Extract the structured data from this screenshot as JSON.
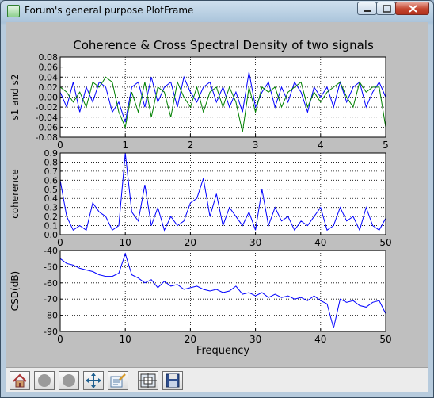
{
  "window": {
    "title": "Forum's general purpose PlotFrame"
  },
  "figure": {
    "title": "Coherence & Cross Spectral Density of two signals"
  },
  "colors": {
    "series1": "#0000ff",
    "series2": "#008000",
    "plot_bg": "#ffffff",
    "figure_bg": "#bfbfbf"
  },
  "toolbar": {
    "buttons": [
      {
        "name": "home",
        "icon": "home-icon"
      },
      {
        "name": "back",
        "icon": "back-icon"
      },
      {
        "name": "forward",
        "icon": "forward-icon"
      },
      {
        "name": "pan",
        "icon": "pan-icon"
      },
      {
        "name": "zoom",
        "icon": "zoom-icon"
      },
      {
        "name": "subplots",
        "icon": "subplots-icon"
      },
      {
        "name": "save",
        "icon": "save-icon"
      }
    ]
  },
  "chart_data": [
    {
      "type": "line",
      "title": "Coherence & Cross Spectral Density of two signals",
      "xlabel": "",
      "ylabel": "s1 and s2",
      "xlim": [
        0,
        5
      ],
      "ylim": [
        -0.08,
        0.08
      ],
      "xticks": [
        "0",
        "1",
        "2",
        "3",
        "4",
        "5"
      ],
      "yticks": [
        "0.08",
        "0.06",
        "0.04",
        "0.02",
        "0.00",
        "-0.02",
        "-0.04",
        "-0.06",
        "-0.08"
      ],
      "grid": true,
      "series": [
        {
          "color": "#0000ff",
          "x": [
            0,
            0.1,
            0.2,
            0.3,
            0.4,
            0.5,
            0.6,
            0.7,
            0.8,
            0.9,
            1.0,
            1.1,
            1.2,
            1.3,
            1.4,
            1.5,
            1.6,
            1.7,
            1.8,
            1.9,
            2.0,
            2.1,
            2.2,
            2.3,
            2.4,
            2.5,
            2.6,
            2.7,
            2.8,
            2.9,
            3.0,
            3.1,
            3.2,
            3.3,
            3.4,
            3.5,
            3.6,
            3.7,
            3.8,
            3.9,
            4.0,
            4.1,
            4.2,
            4.3,
            4.4,
            4.5,
            4.6,
            4.7,
            4.8,
            4.9,
            5.0
          ],
          "y": [
            0.01,
            -0.02,
            0.03,
            -0.03,
            0.02,
            -0.01,
            0.03,
            0.02,
            -0.03,
            -0.01,
            -0.05,
            0.02,
            0.03,
            -0.02,
            0.04,
            -0.01,
            0.02,
            0.03,
            -0.02,
            0.04,
            0.01,
            -0.01,
            0.02,
            0.03,
            -0.01,
            0.02,
            -0.02,
            0.01,
            -0.03,
            0.05,
            -0.02,
            0.01,
            0.03,
            -0.02,
            0.02,
            -0.01,
            0.03,
            0.01,
            -0.03,
            0.02,
            0.0,
            0.02,
            -0.02,
            0.03,
            -0.01,
            0.02,
            0.03,
            -0.02,
            0.01,
            0.03,
            0.0
          ]
        },
        {
          "color": "#008000",
          "x": [
            0,
            0.1,
            0.2,
            0.3,
            0.4,
            0.5,
            0.6,
            0.7,
            0.8,
            0.9,
            1.0,
            1.1,
            1.2,
            1.3,
            1.4,
            1.5,
            1.6,
            1.7,
            1.8,
            1.9,
            2.0,
            2.1,
            2.2,
            2.3,
            2.4,
            2.5,
            2.6,
            2.7,
            2.8,
            2.9,
            3.0,
            3.1,
            3.2,
            3.3,
            3.4,
            3.5,
            3.6,
            3.7,
            3.8,
            3.9,
            4.0,
            4.1,
            4.2,
            4.3,
            4.4,
            4.5,
            4.6,
            4.7,
            4.8,
            4.9,
            5.0
          ],
          "y": [
            0.02,
            0.01,
            -0.01,
            0.01,
            -0.02,
            0.03,
            0.02,
            0.04,
            0.03,
            -0.03,
            -0.06,
            0.01,
            -0.03,
            0.03,
            -0.04,
            0.02,
            0.01,
            -0.04,
            0.03,
            0.0,
            -0.02,
            0.02,
            -0.03,
            0.01,
            0.02,
            -0.02,
            0.02,
            -0.01,
            -0.07,
            0.02,
            -0.03,
            0.02,
            0.01,
            0.02,
            -0.02,
            0.01,
            0.02,
            0.03,
            -0.02,
            0.01,
            -0.01,
            0.01,
            0.02,
            0.03,
            0.0,
            -0.02,
            0.03,
            0.01,
            0.02,
            0.02,
            -0.06
          ]
        }
      ]
    },
    {
      "type": "line",
      "title": "",
      "xlabel": "",
      "ylabel": "coherence",
      "xlim": [
        0,
        50
      ],
      "ylim": [
        0,
        0.9
      ],
      "xticks": [
        "0",
        "10",
        "20",
        "30",
        "40",
        "50"
      ],
      "yticks": [
        "0.9",
        "0.8",
        "0.7",
        "0.6",
        "0.5",
        "0.4",
        "0.3",
        "0.2",
        "0.1",
        "0.0"
      ],
      "grid": true,
      "series": [
        {
          "color": "#0000ff",
          "x": [
            0,
            1,
            2,
            3,
            4,
            5,
            6,
            7,
            8,
            9,
            10,
            11,
            12,
            13,
            14,
            15,
            16,
            17,
            18,
            19,
            20,
            21,
            22,
            23,
            24,
            25,
            26,
            27,
            28,
            29,
            30,
            31,
            32,
            33,
            34,
            35,
            36,
            37,
            38,
            39,
            40,
            41,
            42,
            43,
            44,
            45,
            46,
            47,
            48,
            49,
            50
          ],
          "y": [
            0.6,
            0.2,
            0.05,
            0.1,
            0.05,
            0.35,
            0.25,
            0.2,
            0.05,
            0.1,
            0.9,
            0.25,
            0.15,
            0.55,
            0.1,
            0.3,
            0.05,
            0.2,
            0.1,
            0.15,
            0.35,
            0.4,
            0.62,
            0.2,
            0.45,
            0.1,
            0.3,
            0.2,
            0.1,
            0.25,
            0.05,
            0.5,
            0.1,
            0.3,
            0.15,
            0.2,
            0.05,
            0.15,
            0.1,
            0.2,
            0.3,
            0.05,
            0.1,
            0.3,
            0.15,
            0.2,
            0.05,
            0.3,
            0.1,
            0.05,
            0.18
          ]
        }
      ]
    },
    {
      "type": "line",
      "title": "",
      "xlabel": "Frequency",
      "ylabel": "CSD(dB)",
      "xlim": [
        0,
        50
      ],
      "ylim": [
        -90,
        -40
      ],
      "xticks": [
        "0",
        "10",
        "20",
        "30",
        "40",
        "50"
      ],
      "yticks": [
        "-40",
        "-50",
        "-60",
        "-70",
        "-80",
        "-90"
      ],
      "grid": true,
      "series": [
        {
          "color": "#0000ff",
          "x": [
            0,
            1,
            2,
            3,
            4,
            5,
            6,
            7,
            8,
            9,
            10,
            11,
            12,
            13,
            14,
            15,
            16,
            17,
            18,
            19,
            20,
            21,
            22,
            23,
            24,
            25,
            26,
            27,
            28,
            29,
            30,
            31,
            32,
            33,
            34,
            35,
            36,
            37,
            38,
            39,
            40,
            41,
            42,
            43,
            44,
            45,
            46,
            47,
            48,
            49,
            50
          ],
          "y": [
            -45,
            -48,
            -49,
            -51,
            -52,
            -53,
            -55,
            -56,
            -56,
            -54,
            -42,
            -55,
            -57,
            -60,
            -58,
            -63,
            -59,
            -62,
            -61,
            -64,
            -63,
            -62,
            -64,
            -65,
            -64,
            -66,
            -65,
            -62,
            -67,
            -66,
            -68,
            -66,
            -69,
            -67,
            -69,
            -68,
            -70,
            -69,
            -71,
            -68,
            -71,
            -73,
            -88,
            -70,
            -72,
            -71,
            -74,
            -75,
            -72,
            -71,
            -79
          ]
        }
      ]
    }
  ]
}
